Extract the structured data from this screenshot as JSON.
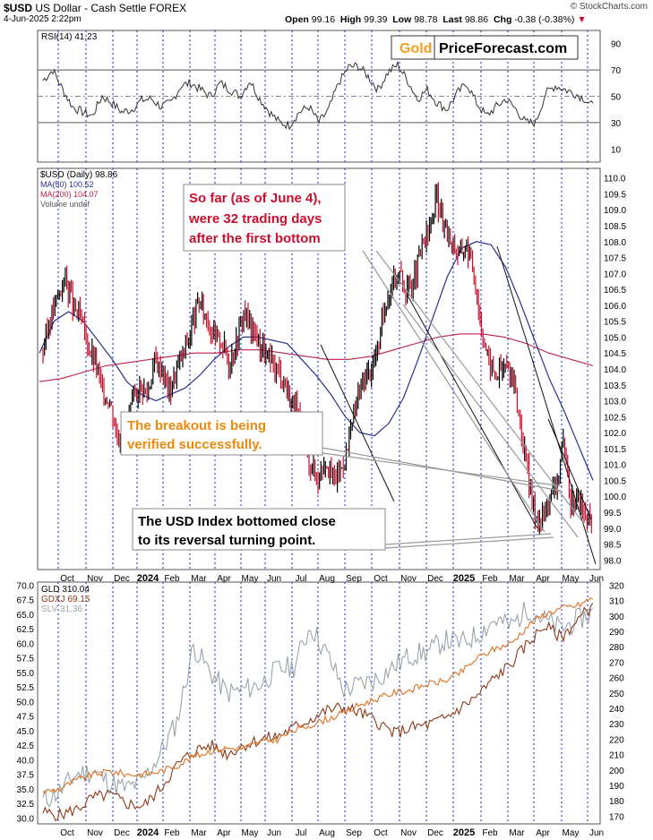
{
  "header": {
    "symbol": "$USD",
    "name": "US Dollar - Cash Settle",
    "exchange": "FOREX",
    "date": "4-Jun-2025 2:22pm",
    "open_label": "Open",
    "open": "99.16",
    "high_label": "High",
    "high": "99.39",
    "low_label": "Low",
    "low": "98.78",
    "last_label": "Last",
    "last": "98.86",
    "chg_label": "Chg",
    "chg": "-0.38 (-0.38%)",
    "credit": "© StockCharts.com"
  },
  "logo": {
    "part1": "Gold",
    "part2": "PriceForecast.com"
  },
  "colors": {
    "grid_vertical": "#1f3bd6",
    "price_up": "#000000",
    "price_down": "#c8102e",
    "ma50": "#2a2f8a",
    "ma200": "#c0204a",
    "rsi": "#333333",
    "gld": "#e07020",
    "gdxj": "#8b3a1a",
    "slv": "#9aa4ab",
    "annotation_red": "#c8102e",
    "annotation_orange": "#e88a10",
    "logo_gold": "#f0a020"
  },
  "chart_data": [
    {
      "type": "line",
      "panel": "rsi",
      "legend": "RSI(14) 41.23",
      "ylim": [
        0,
        100
      ],
      "ticks": [
        "90",
        "70",
        "50",
        "30",
        "10"
      ],
      "tick_values": [
        90,
        70,
        50,
        30,
        10
      ],
      "levels": [
        70,
        50,
        30
      ],
      "series": [
        {
          "name": "RSI(14)",
          "values": [
            62,
            70,
            55,
            42,
            38,
            35,
            50,
            45,
            38,
            40,
            47,
            48,
            42,
            45,
            58,
            60,
            55,
            50,
            60,
            55,
            50,
            62,
            48,
            38,
            30,
            28,
            38,
            42,
            30,
            40,
            60,
            72,
            73,
            65,
            55,
            68,
            74,
            62,
            48,
            55,
            45,
            40,
            52,
            60,
            45,
            35,
            42,
            48,
            40,
            30,
            30,
            52,
            58,
            55,
            52,
            48,
            41
          ]
        }
      ]
    },
    {
      "type": "line",
      "panel": "usd",
      "legend": {
        "usd": "$USD (Daily) 98.86",
        "ma50": "MA(50) 100.52",
        "ma200": "MA(200) 104.07",
        "volume": "Volume undef"
      },
      "ylim": [
        97.7,
        110.3
      ],
      "ticks": [
        "110.0",
        "109.5",
        "109.0",
        "108.5",
        "108.0",
        "107.5",
        "107.0",
        "106.5",
        "106.0",
        "105.5",
        "105.0",
        "104.5",
        "104.0",
        "103.5",
        "103.0",
        "102.5",
        "102.0",
        "101.5",
        "101.0",
        "100.5",
        "100.0",
        "99.5",
        "99.0",
        "98.5",
        "98.0"
      ],
      "tick_values": [
        110.0,
        109.5,
        109.0,
        108.5,
        108.0,
        107.5,
        107.0,
        106.5,
        106.0,
        105.5,
        105.0,
        104.5,
        104.0,
        103.5,
        103.0,
        102.5,
        102.0,
        101.5,
        101.0,
        100.5,
        100.0,
        99.5,
        99.0,
        98.5,
        98.0
      ],
      "x_labels": [
        "Oct",
        "Nov",
        "Dec",
        "2024",
        "Feb",
        "Mar",
        "Apr",
        "May",
        "Jun",
        "Jul",
        "Aug",
        "Sep",
        "Oct",
        "Nov",
        "Dec",
        "2025",
        "Feb",
        "Mar",
        "Apr",
        "May",
        "Jun"
      ],
      "series": [
        {
          "name": "$USD",
          "values": [
            104.6,
            105.6,
            106.3,
            106.9,
            106.0,
            105.6,
            104.8,
            104.2,
            103.3,
            103.0,
            101.9,
            102.2,
            102.8,
            103.5,
            103.2,
            104.2,
            104.0,
            103.3,
            104.0,
            104.6,
            105.3,
            106.1,
            105.6,
            105.0,
            104.9,
            104.2,
            104.8,
            105.8,
            105.3,
            104.9,
            104.4,
            104.1,
            103.9,
            103.2,
            102.8,
            101.8,
            101.0,
            100.6,
            101.2,
            100.5,
            100.8,
            101.5,
            102.8,
            103.6,
            103.9,
            104.6,
            106.0,
            106.8,
            107.0,
            106.4,
            106.9,
            107.8,
            108.4,
            109.4,
            108.4,
            108.0,
            107.6,
            107.9,
            107.0,
            105.3,
            104.2,
            103.8,
            104.1,
            103.9,
            102.6,
            101.0,
            99.6,
            99.2,
            99.9,
            100.3,
            101.6,
            99.8,
            99.9,
            99.4,
            98.9
          ]
        },
        {
          "name": "MA(50)",
          "values": [
            104.5,
            105.5,
            105.8,
            105.5,
            104.9,
            104.3,
            103.6,
            103.2,
            103.0,
            103.2,
            103.4,
            103.8,
            104.3,
            104.7,
            105.0,
            105.0,
            104.9,
            104.8,
            104.3,
            103.8,
            103.2,
            102.5,
            102.0,
            101.9,
            102.3,
            103.1,
            104.3,
            105.6,
            106.9,
            107.8,
            108.0,
            107.9,
            107.2,
            106.1,
            104.9,
            103.7,
            102.7,
            101.6,
            100.5
          ]
        },
        {
          "name": "MA(200)",
          "values": [
            103.6,
            103.7,
            103.9,
            104.1,
            104.2,
            104.3,
            104.4,
            104.5,
            104.5,
            104.6,
            104.6,
            104.5,
            104.4,
            104.3,
            104.3,
            104.4,
            104.6,
            104.8,
            105.0,
            105.1,
            105.1,
            105.0,
            104.8,
            104.5,
            104.3,
            104.1
          ]
        }
      ]
    },
    {
      "type": "line",
      "panel": "metals",
      "legend": {
        "gld": "GLD 310.04",
        "gdxj": "GDXJ 69.15",
        "slv": "SLV 31.36"
      },
      "ylim": [
        29.0,
        70.5
      ],
      "ticks_left": [
        "70.0",
        "67.5",
        "65.0",
        "62.5",
        "60.0",
        "57.5",
        "55.0",
        "52.5",
        "50.0",
        "47.5",
        "45.0",
        "42.5",
        "40.0",
        "37.5",
        "35.0",
        "32.5",
        "30.0"
      ],
      "tick_values_left": [
        70.0,
        67.5,
        65.0,
        62.5,
        60.0,
        57.5,
        55.0,
        52.5,
        50.0,
        47.5,
        45.0,
        42.5,
        40.0,
        37.5,
        35.0,
        32.5,
        30.0
      ],
      "ticks_right": [
        "320",
        "310",
        "300",
        "290",
        "280",
        "270",
        "260",
        "250",
        "240",
        "230",
        "220",
        "210",
        "200",
        "190",
        "180",
        "170"
      ],
      "tick_values_right": [
        320,
        310,
        300,
        290,
        280,
        270,
        260,
        250,
        240,
        230,
        220,
        210,
        200,
        190,
        180,
        170
      ],
      "x_labels": [
        "Oct",
        "Nov",
        "Dec",
        "2024",
        "Feb",
        "Mar",
        "Apr",
        "May",
        "Jun",
        "Jul",
        "Aug",
        "Sep",
        "Oct",
        "Nov",
        "Dec",
        "2025",
        "Feb",
        "Mar",
        "Apr",
        "May",
        "Jun"
      ],
      "series": [
        {
          "name": "GLD",
          "values": [
            34.5,
            35.0,
            36.5,
            37.5,
            38.0,
            37.5,
            37.5,
            38.0,
            39.0,
            40.5,
            41.5,
            42.0,
            42.0,
            43.0,
            43.5,
            45.0,
            46.0,
            47.0,
            48.0,
            49.5,
            50.5,
            51.5,
            52.0,
            53.0,
            53.5,
            55.0,
            57.5,
            59.0,
            60.0,
            63.0,
            65.0,
            66.0,
            66.5,
            68.0
          ]
        },
        {
          "name": "GDXJ",
          "values": [
            31.0,
            30.5,
            31.5,
            33.5,
            34.0,
            32.5,
            32.0,
            35.0,
            39.0,
            41.5,
            42.5,
            41.0,
            42.5,
            43.5,
            44.0,
            45.5,
            47.0,
            48.5,
            49.0,
            48.0,
            46.5,
            44.5,
            45.5,
            46.0,
            47.0,
            49.0,
            51.0,
            54.0,
            56.5,
            60.0,
            63.0,
            61.0,
            64.0,
            67.0
          ]
        },
        {
          "name": "SLV",
          "values": [
            33.0,
            34.5,
            37.5,
            38.0,
            36.0,
            35.0,
            36.5,
            41.0,
            46.5,
            59.5,
            55.0,
            51.5,
            52.0,
            53.0,
            55.5,
            56.0,
            63.0,
            58.0,
            52.0,
            53.0,
            54.0,
            56.0,
            58.0,
            58.5,
            60.5,
            60.0,
            61.5,
            64.0,
            63.0,
            66.0,
            64.0,
            62.5,
            64.0,
            65.5
          ]
        }
      ]
    }
  ],
  "annotations": {
    "trading_days_box": {
      "line1": "So far (as of June 4),",
      "line2": "were 32 trading days",
      "line3": "after the first bottom"
    },
    "breakout_box": {
      "line1": "The breakout is being",
      "line2": "verified successfully."
    },
    "bottom_box": {
      "line1": "The USD Index bottomed close",
      "line2": "to its reversal turning point."
    }
  }
}
